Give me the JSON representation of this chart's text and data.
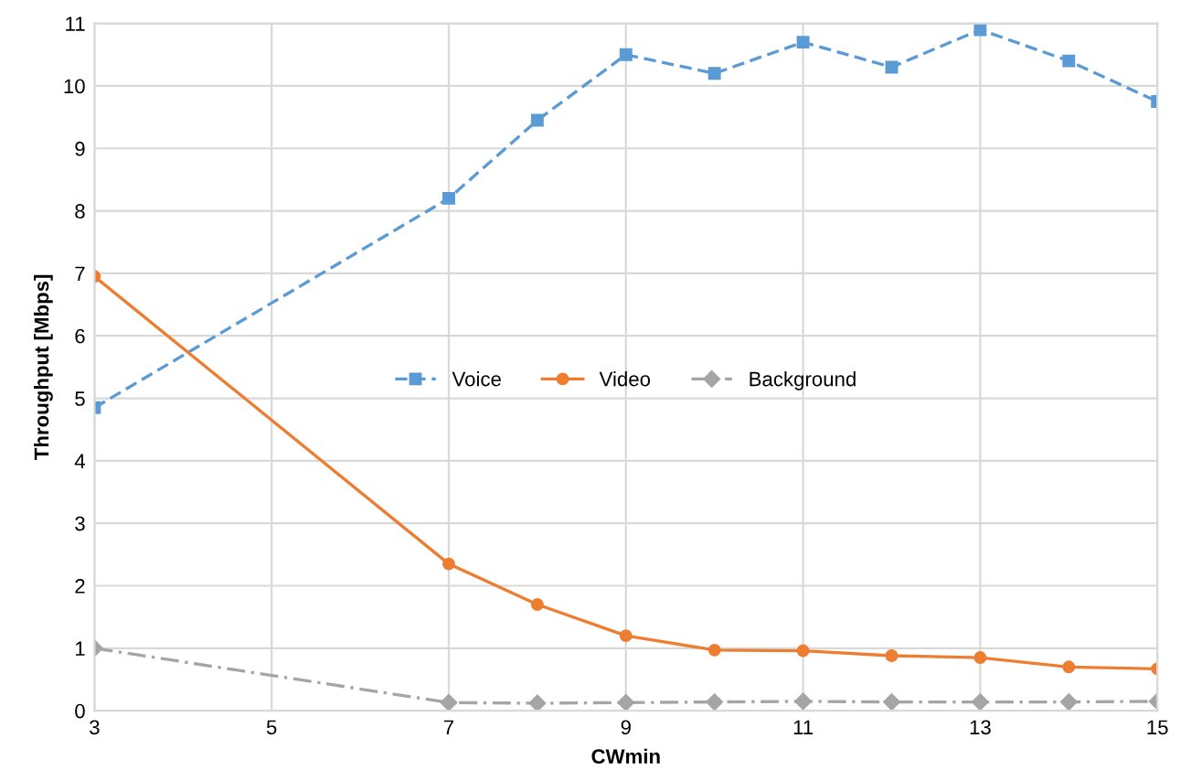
{
  "chart_data": {
    "type": "line",
    "xlabel": "CWmin",
    "ylabel": "Throughput [Mbps]",
    "x": [
      3,
      7,
      8,
      9,
      10,
      11,
      12,
      13,
      14,
      15
    ],
    "series": [
      {
        "name": "Voice",
        "color": "#5b9bd5",
        "marker": "square",
        "line_style": "dashed",
        "values": [
          4.85,
          8.2,
          9.45,
          10.5,
          10.2,
          10.7,
          10.3,
          10.9,
          10.4,
          9.75
        ]
      },
      {
        "name": "Video",
        "color": "#ed7d31",
        "marker": "circle",
        "line_style": "solid",
        "values": [
          6.95,
          2.35,
          1.7,
          1.2,
          0.97,
          0.96,
          0.88,
          0.85,
          0.7,
          0.67
        ]
      },
      {
        "name": "Background",
        "color": "#a5a5a5",
        "marker": "diamond",
        "line_style": "dashdot",
        "values": [
          1.0,
          0.13,
          0.12,
          0.13,
          0.14,
          0.15,
          0.14,
          0.14,
          0.14,
          0.15
        ]
      }
    ],
    "xlim": [
      3,
      15
    ],
    "xticks": [
      3,
      5,
      7,
      9,
      11,
      13,
      15
    ],
    "ylim": [
      0,
      11
    ],
    "yticks": [
      0,
      1,
      2,
      3,
      4,
      5,
      6,
      7,
      8,
      9,
      10,
      11
    ],
    "grid": true,
    "legend": "center"
  }
}
